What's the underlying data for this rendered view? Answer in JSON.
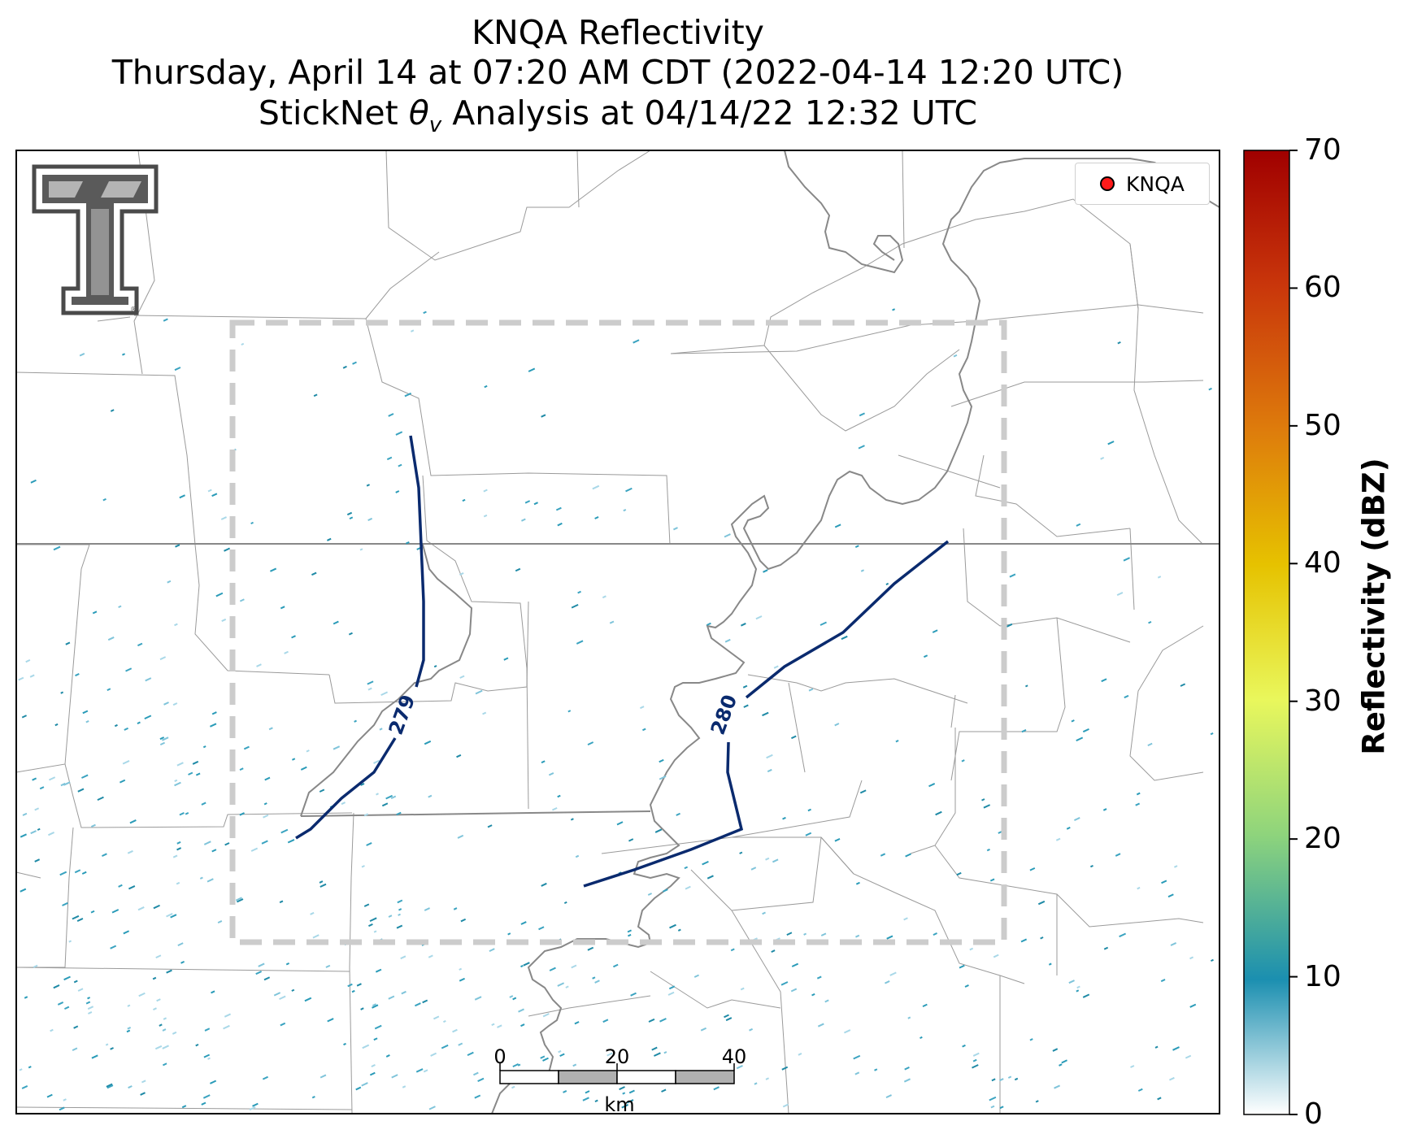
{
  "title": {
    "line1": "KNQA Reflectivity",
    "line2": "Thursday, April 14 at 07:20 AM CDT (2022-04-14 12:20 UTC)",
    "line3_prefix": "StickNet ",
    "line3_symbol": "θ",
    "line3_subscript": "v",
    "line3_suffix": " Analysis at 04/14/22 12:32 UTC"
  },
  "legend": {
    "label": "KNQA",
    "marker_color": "#ff1a1a"
  },
  "contours": [
    {
      "label": "279",
      "color": "#0a2a6e"
    },
    {
      "label": "280",
      "color": "#0a2a6e"
    }
  ],
  "colorbar": {
    "label": "Reflectivity (dBZ)",
    "ticks": [
      "0",
      "10",
      "20",
      "30",
      "40",
      "50",
      "60",
      "70"
    ],
    "range": [
      0,
      70
    ],
    "colors": [
      "#ffffff",
      "#1b8fb0",
      "#8ed47c",
      "#e9f75c",
      "#e6c200",
      "#de7c0c",
      "#c9360b",
      "#a00000"
    ]
  },
  "scalebar": {
    "ticks": [
      "0",
      "20",
      "40"
    ],
    "unit": "km"
  },
  "colors": {
    "boundary_state": "#888888",
    "boundary_county": "#9a9a9a",
    "analysis_box": "#cccccc",
    "echo": "#2a9bb8"
  }
}
